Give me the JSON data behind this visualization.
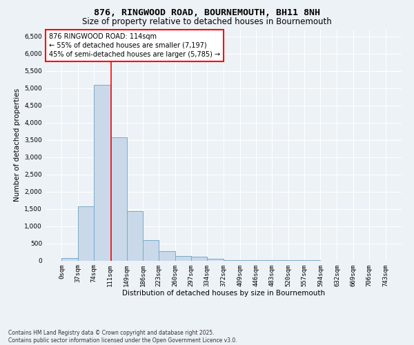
{
  "title1": "876, RINGWOOD ROAD, BOURNEMOUTH, BH11 8NH",
  "title2": "Size of property relative to detached houses in Bournemouth",
  "xlabel": "Distribution of detached houses by size in Bournemouth",
  "ylabel": "Number of detached properties",
  "bar_color": "#c9d9ea",
  "bar_edge_color": "#7aaac8",
  "redline_x": 114,
  "annotation_line1": "876 RINGWOOD ROAD: 114sqm",
  "annotation_line2": "← 55% of detached houses are smaller (7,197)",
  "annotation_line3": "45% of semi-detached houses are larger (5,785) →",
  "footer1": "Contains HM Land Registry data © Crown copyright and database right 2025.",
  "footer2": "Contains public sector information licensed under the Open Government Licence v3.0.",
  "bin_edges": [
    0,
    37,
    74,
    111,
    149,
    186,
    223,
    260,
    297,
    334,
    372,
    409,
    446,
    483,
    520,
    557,
    594,
    632,
    669,
    706,
    743
  ],
  "bar_heights": [
    70,
    1580,
    5100,
    3580,
    1430,
    600,
    280,
    140,
    105,
    45,
    18,
    8,
    4,
    2,
    1,
    1,
    0,
    0,
    0,
    0
  ],
  "ylim": [
    0,
    6700
  ],
  "yticks": [
    0,
    500,
    1000,
    1500,
    2000,
    2500,
    3000,
    3500,
    4000,
    4500,
    5000,
    5500,
    6000,
    6500
  ],
  "background_color": "#edf2f7",
  "grid_color": "#ffffff",
  "title1_fontsize": 9.5,
  "title2_fontsize": 8.5,
  "axis_fontsize": 7.5,
  "tick_fontsize": 6.5,
  "annotation_fontsize": 7.0,
  "footer_fontsize": 5.5
}
